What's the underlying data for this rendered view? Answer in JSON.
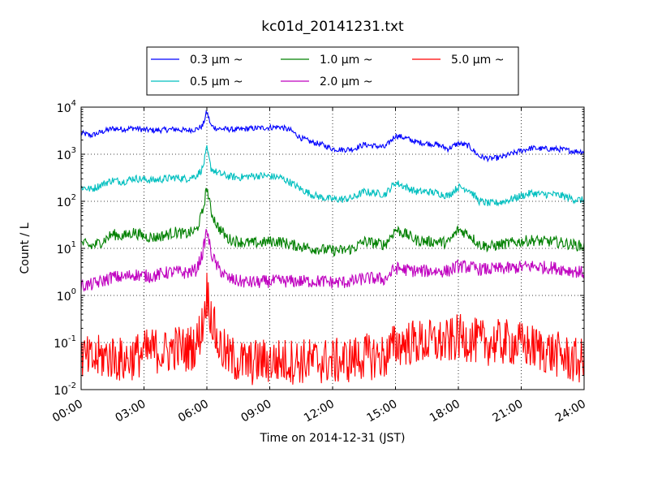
{
  "chart_data": {
    "type": "line",
    "title": "kc01d_20141231.txt",
    "xlabel": "Time on 2014-12-31 (JST)",
    "ylabel": "Count / L",
    "yscale": "log",
    "ylim": [
      0.01,
      10000
    ],
    "xlim": [
      "00:00",
      "24:00"
    ],
    "x_tick_labels": [
      "00:00",
      "03:00",
      "06:00",
      "09:00",
      "12:00",
      "15:00",
      "18:00",
      "21:00",
      "24:00"
    ],
    "x_tick_hours": [
      0,
      3,
      6,
      9,
      12,
      15,
      18,
      21,
      24
    ],
    "y_ticks": [
      {
        "base": "10",
        "exp": "-2",
        "value": 0.01
      },
      {
        "base": "10",
        "exp": "-1",
        "value": 0.1
      },
      {
        "base": "10",
        "exp": "0",
        "value": 1
      },
      {
        "base": "10",
        "exp": "1",
        "value": 10
      },
      {
        "base": "10",
        "exp": "2",
        "value": 100
      },
      {
        "base": "10",
        "exp": "3",
        "value": 1000
      },
      {
        "base": "10",
        "exp": "4",
        "value": 10000
      }
    ],
    "grid": true,
    "legend_position": "top",
    "x_hours": [
      0,
      0.5,
      1,
      1.5,
      2,
      2.5,
      3,
      3.5,
      4,
      4.5,
      5,
      5.5,
      5.8,
      6,
      6.2,
      6.5,
      7,
      7.5,
      8,
      8.5,
      9,
      9.5,
      10,
      10.5,
      11,
      11.5,
      12,
      12.5,
      13,
      13.5,
      14,
      14.5,
      15,
      15.5,
      16,
      16.5,
      17,
      17.5,
      18,
      18.5,
      19,
      19.5,
      20,
      20.5,
      21,
      21.5,
      22,
      22.5,
      23,
      23.5,
      24
    ],
    "series": [
      {
        "name": "0.3 μm ~",
        "color": "#0000ff",
        "noise": 0.06,
        "values": [
          2800,
          2500,
          3000,
          3500,
          3400,
          3600,
          3300,
          3200,
          3300,
          3400,
          3200,
          3400,
          4000,
          8000,
          4000,
          3500,
          3400,
          3300,
          3500,
          3600,
          3700,
          3800,
          3200,
          2200,
          1800,
          1600,
          1300,
          1250,
          1300,
          1600,
          1500,
          1400,
          2500,
          2200,
          1800,
          1700,
          1600,
          1300,
          1700,
          1500,
          900,
          800,
          850,
          1000,
          1200,
          1350,
          1300,
          1300,
          1250,
          1150,
          1150
        ]
      },
      {
        "name": "0.5 μm ~",
        "color": "#00bfbf",
        "noise": 0.08,
        "values": [
          200,
          180,
          230,
          280,
          260,
          310,
          290,
          280,
          300,
          320,
          300,
          350,
          500,
          1300,
          500,
          400,
          340,
          320,
          340,
          350,
          340,
          320,
          250,
          180,
          140,
          120,
          110,
          110,
          120,
          160,
          150,
          140,
          250,
          200,
          160,
          160,
          150,
          130,
          200,
          180,
          100,
          90,
          95,
          110,
          130,
          150,
          140,
          140,
          130,
          110,
          105
        ]
      },
      {
        "name": "1.0 μm ~",
        "color": "#008000",
        "noise": 0.12,
        "values": [
          13,
          11,
          14,
          20,
          18,
          22,
          18,
          17,
          19,
          22,
          20,
          24,
          60,
          200,
          60,
          30,
          16,
          14,
          13,
          13,
          14,
          14,
          12,
          11,
          10,
          9.5,
          9,
          9,
          10,
          14,
          13,
          12,
          25,
          20,
          15,
          14,
          14,
          13,
          25,
          20,
          12,
          11,
          12,
          13,
          14,
          15,
          14,
          14,
          13,
          12,
          11
        ]
      },
      {
        "name": "2.0 μm ~",
        "color": "#bf00bf",
        "noise": 0.14,
        "values": [
          1.6,
          1.7,
          2.0,
          2.5,
          2.4,
          2.8,
          2.6,
          2.6,
          3.0,
          3.2,
          3.0,
          3.5,
          8,
          25,
          8,
          4,
          2.3,
          2.0,
          1.9,
          1.9,
          2.0,
          2.0,
          2.0,
          2.0,
          2.0,
          2.0,
          1.9,
          1.9,
          2.0,
          2.3,
          2.3,
          2.2,
          3.8,
          3.5,
          3.3,
          3.3,
          3.3,
          3.3,
          4.2,
          4.0,
          3.6,
          3.6,
          3.7,
          3.8,
          4.0,
          4.2,
          4.0,
          3.9,
          3.6,
          3.3,
          3.0
        ]
      },
      {
        "name": "5.0 μm ~",
        "color": "#ff0000",
        "noise": 0.5,
        "values": [
          0.05,
          0.04,
          0.05,
          0.05,
          0.04,
          0.05,
          0.06,
          0.07,
          0.06,
          0.08,
          0.07,
          0.09,
          0.25,
          1.2,
          0.4,
          0.1,
          0.05,
          0.04,
          0.035,
          0.04,
          0.04,
          0.04,
          0.04,
          0.04,
          0.04,
          0.04,
          0.04,
          0.04,
          0.045,
          0.05,
          0.05,
          0.05,
          0.09,
          0.1,
          0.1,
          0.1,
          0.1,
          0.1,
          0.13,
          0.12,
          0.1,
          0.1,
          0.1,
          0.1,
          0.09,
          0.08,
          0.07,
          0.06,
          0.05,
          0.04,
          0.04
        ]
      }
    ]
  }
}
